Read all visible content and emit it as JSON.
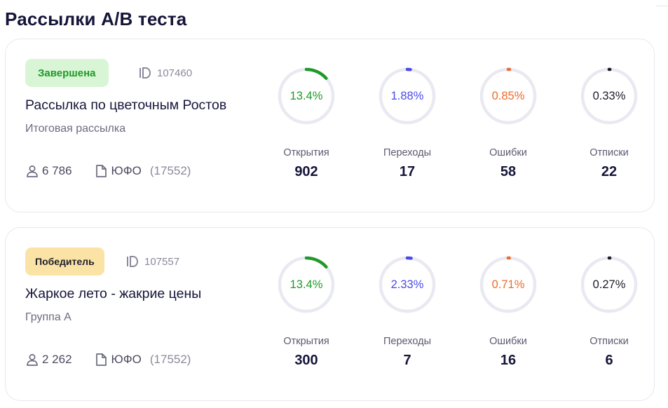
{
  "page": {
    "title": "Рассылки A/B теста"
  },
  "colors": {
    "open": "#1f9a28",
    "click": "#4a4ae8",
    "error": "#f06a2a",
    "unsub": "#1b1b2a",
    "ring_track": "#e9e9f2"
  },
  "cards": [
    {
      "badge": "Завершена",
      "badge_kind": "done",
      "id_label": "107460",
      "name": "Рассылка по цветочным Ростов",
      "subtitle": "Итоговая рассылка",
      "recipients": "6 786",
      "segment_name": "ЮФО",
      "segment_count": "(17552)",
      "metrics": [
        {
          "key": "open",
          "percent_text": "13.4%",
          "percent": 13.4,
          "label": "Открытия",
          "value": "902"
        },
        {
          "key": "click",
          "percent_text": "1.88%",
          "percent": 1.88,
          "label": "Переходы",
          "value": "17"
        },
        {
          "key": "error",
          "percent_text": "0.85%",
          "percent": 0.85,
          "label": "Ошибки",
          "value": "58"
        },
        {
          "key": "unsub",
          "percent_text": "0.33%",
          "percent": 0.33,
          "label": "Отписки",
          "value": "22"
        }
      ]
    },
    {
      "badge": "Победитель",
      "badge_kind": "winner",
      "id_label": "107557",
      "name": "Жаркое лето - жакрие цены",
      "subtitle": "Группа А",
      "recipients": "2 262",
      "segment_name": "ЮФО",
      "segment_count": "(17552)",
      "metrics": [
        {
          "key": "open",
          "percent_text": "13.4%",
          "percent": 13.4,
          "label": "Открытия",
          "value": "300"
        },
        {
          "key": "click",
          "percent_text": "2.33%",
          "percent": 2.33,
          "label": "Переходы",
          "value": "7"
        },
        {
          "key": "error",
          "percent_text": "0.71%",
          "percent": 0.71,
          "label": "Ошибки",
          "value": "16"
        },
        {
          "key": "unsub",
          "percent_text": "0.27%",
          "percent": 0.27,
          "label": "Отписки",
          "value": "6"
        }
      ]
    }
  ]
}
